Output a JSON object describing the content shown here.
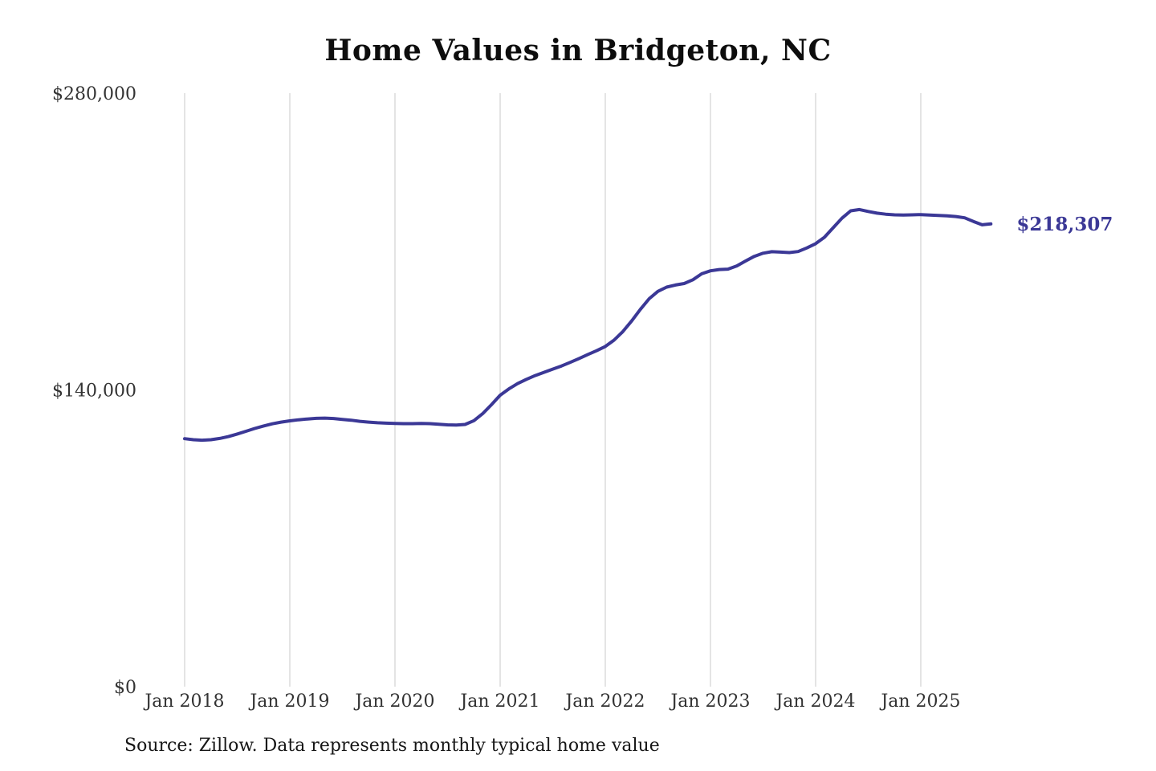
{
  "chart_data": {
    "type": "line",
    "title": "Home Values in Bridgeton, NC",
    "source_note": "Source: Zillow. Data represents monthly typical home value",
    "line_color": "#3b3896",
    "grid_color": "#c8c8c8",
    "axis_text_color": "#333333",
    "grid": "vertical-only",
    "legend_position": "none",
    "ylim": [
      0,
      280000
    ],
    "y_ticks": [
      0,
      140000,
      280000
    ],
    "y_tick_labels": [
      "$0",
      "$140,000",
      "$280,000"
    ],
    "x_tick_labels": [
      "Jan 2018",
      "Jan 2019",
      "Jan 2020",
      "Jan 2021",
      "Jan 2022",
      "Jan 2023",
      "Jan 2024",
      "Jan 2025"
    ],
    "end_label": "$218,307",
    "last_value": 218307,
    "x": [
      "2018-01",
      "2018-02",
      "2018-03",
      "2018-04",
      "2018-05",
      "2018-06",
      "2018-07",
      "2018-08",
      "2018-09",
      "2018-10",
      "2018-11",
      "2018-12",
      "2019-01",
      "2019-02",
      "2019-03",
      "2019-04",
      "2019-05",
      "2019-06",
      "2019-07",
      "2019-08",
      "2019-09",
      "2019-10",
      "2019-11",
      "2019-12",
      "2020-01",
      "2020-02",
      "2020-03",
      "2020-04",
      "2020-05",
      "2020-06",
      "2020-07",
      "2020-08",
      "2020-09",
      "2020-10",
      "2020-11",
      "2020-12",
      "2021-01",
      "2021-02",
      "2021-03",
      "2021-04",
      "2021-05",
      "2021-06",
      "2021-07",
      "2021-08",
      "2021-09",
      "2021-10",
      "2021-11",
      "2021-12",
      "2022-01",
      "2022-02",
      "2022-03",
      "2022-04",
      "2022-05",
      "2022-06",
      "2022-07",
      "2022-08",
      "2022-09",
      "2022-10",
      "2022-11",
      "2022-12",
      "2023-01",
      "2023-02",
      "2023-03",
      "2023-04",
      "2023-05",
      "2023-06",
      "2023-07",
      "2023-08",
      "2023-09",
      "2023-10",
      "2023-11",
      "2023-12",
      "2024-01",
      "2024-02",
      "2024-03",
      "2024-04",
      "2024-05",
      "2024-06",
      "2024-07",
      "2024-08",
      "2024-09",
      "2024-10",
      "2024-11",
      "2024-12",
      "2025-01",
      "2025-02",
      "2025-03",
      "2025-04",
      "2025-05",
      "2025-06",
      "2025-07",
      "2025-08",
      "2025-09"
    ],
    "series": [
      {
        "name": "Monthly typical home value",
        "values": [
          117000,
          116500,
          116300,
          116500,
          117100,
          118000,
          119200,
          120500,
          121800,
          123000,
          124000,
          124800,
          125400,
          125900,
          126300,
          126600,
          126700,
          126500,
          126100,
          125700,
          125200,
          124800,
          124500,
          124300,
          124200,
          124100,
          124100,
          124200,
          124100,
          123800,
          123500,
          123400,
          123700,
          125500,
          128800,
          133000,
          137500,
          140500,
          143000,
          145000,
          146800,
          148300,
          149800,
          151300,
          153000,
          154800,
          156700,
          158500,
          160500,
          163500,
          167500,
          172500,
          178000,
          183000,
          186500,
          188500,
          189500,
          190200,
          192000,
          194800,
          196200,
          196800,
          197000,
          198500,
          200800,
          203000,
          204500,
          205200,
          205000,
          204800,
          205300,
          207000,
          209000,
          212000,
          216500,
          221000,
          224500,
          225100,
          224200,
          223400,
          222900,
          222600,
          222500,
          222600,
          222700,
          222500,
          222300,
          222100,
          221800,
          221200,
          219500,
          217900,
          218307
        ]
      }
    ]
  }
}
